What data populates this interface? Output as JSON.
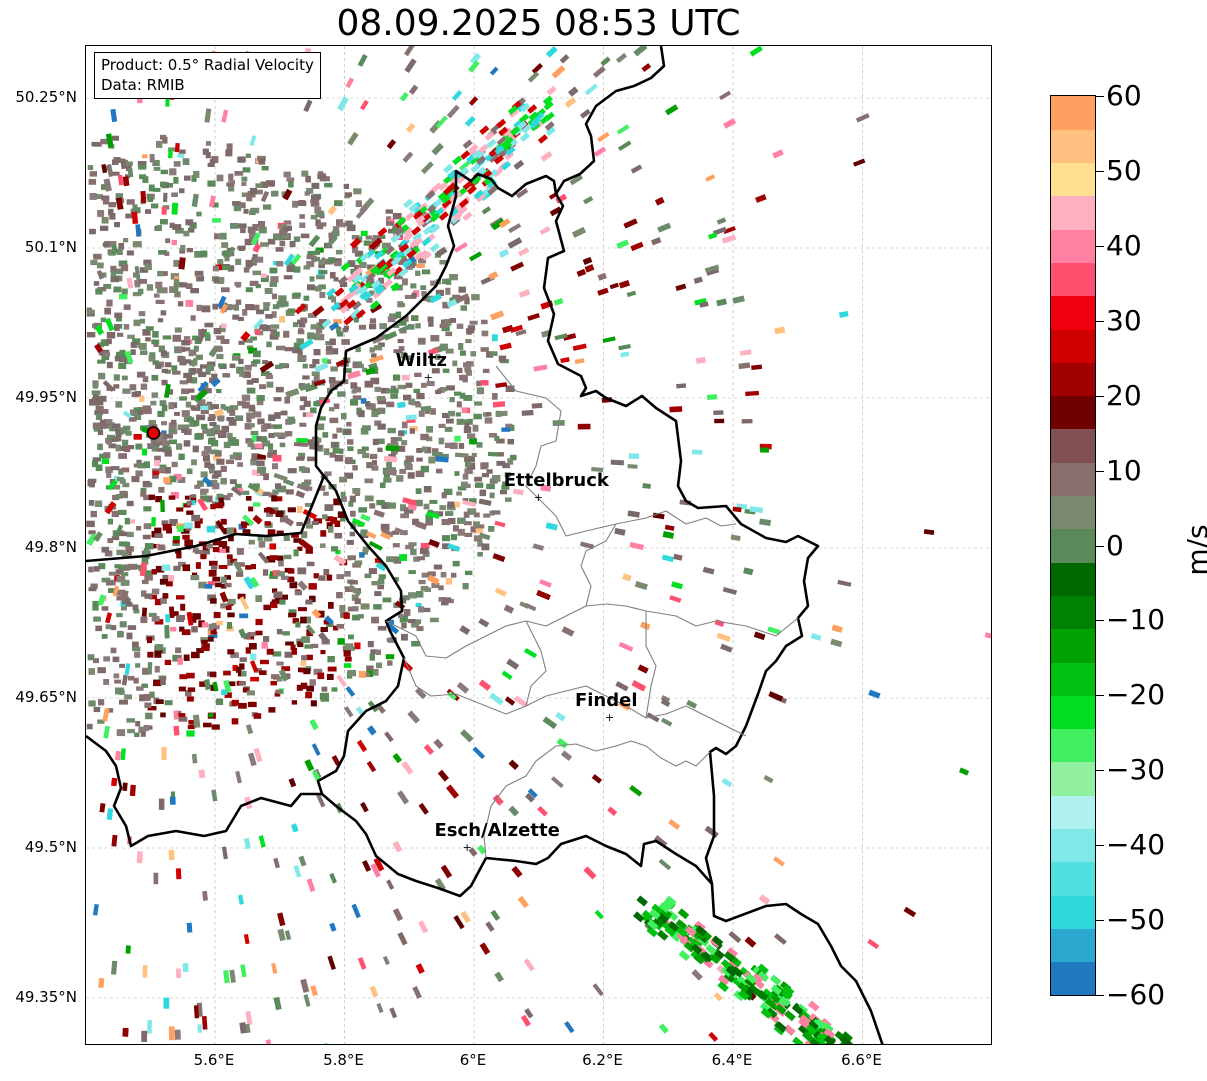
{
  "title": "08.09.2025 08:53 UTC",
  "info": {
    "product_line": "Product: 0.5° Radial Velocity",
    "data_line": "Data: RMIB"
  },
  "axes": {
    "lat_ticks": [
      "50.25°N",
      "50.1°N",
      "49.95°N",
      "49.8°N",
      "49.65°N",
      "49.5°N",
      "49.35°N"
    ],
    "lon_ticks": [
      "5.6°E",
      "5.8°E",
      "6°E",
      "6.2°E",
      "6.4°E",
      "6.6°E"
    ]
  },
  "cities": [
    {
      "name": "Wiltz",
      "lon": 5.93,
      "lat": 49.97
    },
    {
      "name": "Ettelbruck",
      "lon": 6.1,
      "lat": 49.85
    },
    {
      "name": "Findel",
      "lon": 6.21,
      "lat": 49.63
    },
    {
      "name": "Esch/Alzette",
      "lon": 5.99,
      "lat": 49.5
    }
  ],
  "radar_site": {
    "lon": 5.505,
    "lat": 49.915,
    "color": "#e00000"
  },
  "colorbar": {
    "unit": "m/s",
    "min": -60,
    "max": 60,
    "tick_labels": [
      "60",
      "50",
      "40",
      "30",
      "20",
      "10",
      "0",
      "−10",
      "−20",
      "−30",
      "−40",
      "−50",
      "−60"
    ],
    "colors": [
      "#1f78c0",
      "#2aa8d0",
      "#2ed8dc",
      "#50e0e0",
      "#80e8e8",
      "#b0f0f0",
      "#90f0a0",
      "#40f060",
      "#00e020",
      "#00c010",
      "#00a000",
      "#008000",
      "#006800",
      "#5a8a5a",
      "#7a8a70",
      "#887070",
      "#805050",
      "#700000",
      "#a00000",
      "#d00000",
      "#f00010",
      "#ff5070",
      "#ff80a0",
      "#ffb0c0",
      "#ffe090",
      "#ffc080",
      "#ffa060"
    ]
  }
}
